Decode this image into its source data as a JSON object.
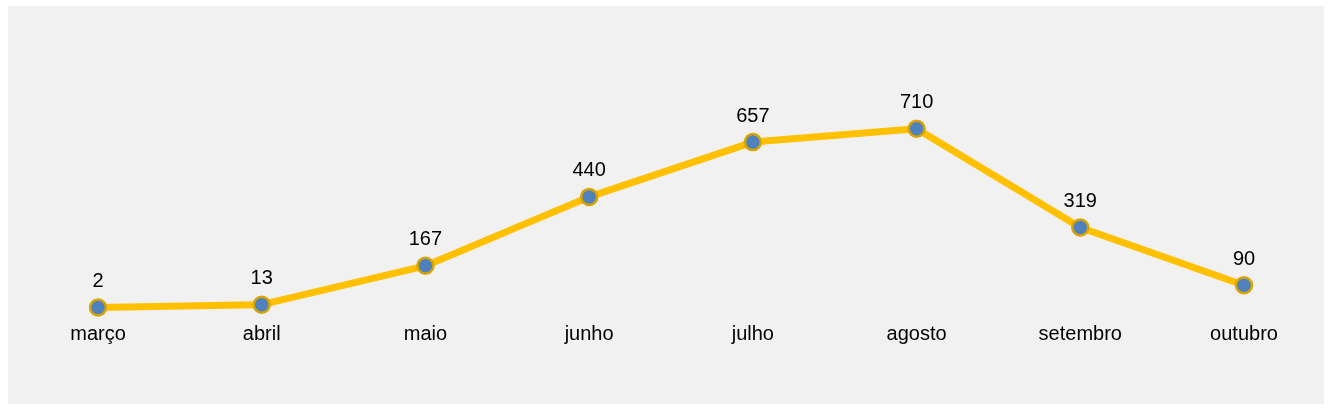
{
  "chart_data": {
    "type": "line",
    "categories": [
      "março",
      "abril",
      "maio",
      "junho",
      "julho",
      "agosto",
      "setembro",
      "outubro"
    ],
    "series": [
      {
        "color": "#ffc000",
        "values": [
          2,
          13,
          167,
          440,
          657,
          710,
          319,
          90
        ]
      }
    ],
    "data_labels": true,
    "marker": "circle",
    "line_style": "solid",
    "legend": false,
    "grid": false,
    "tick_labels": "x"
  }
}
